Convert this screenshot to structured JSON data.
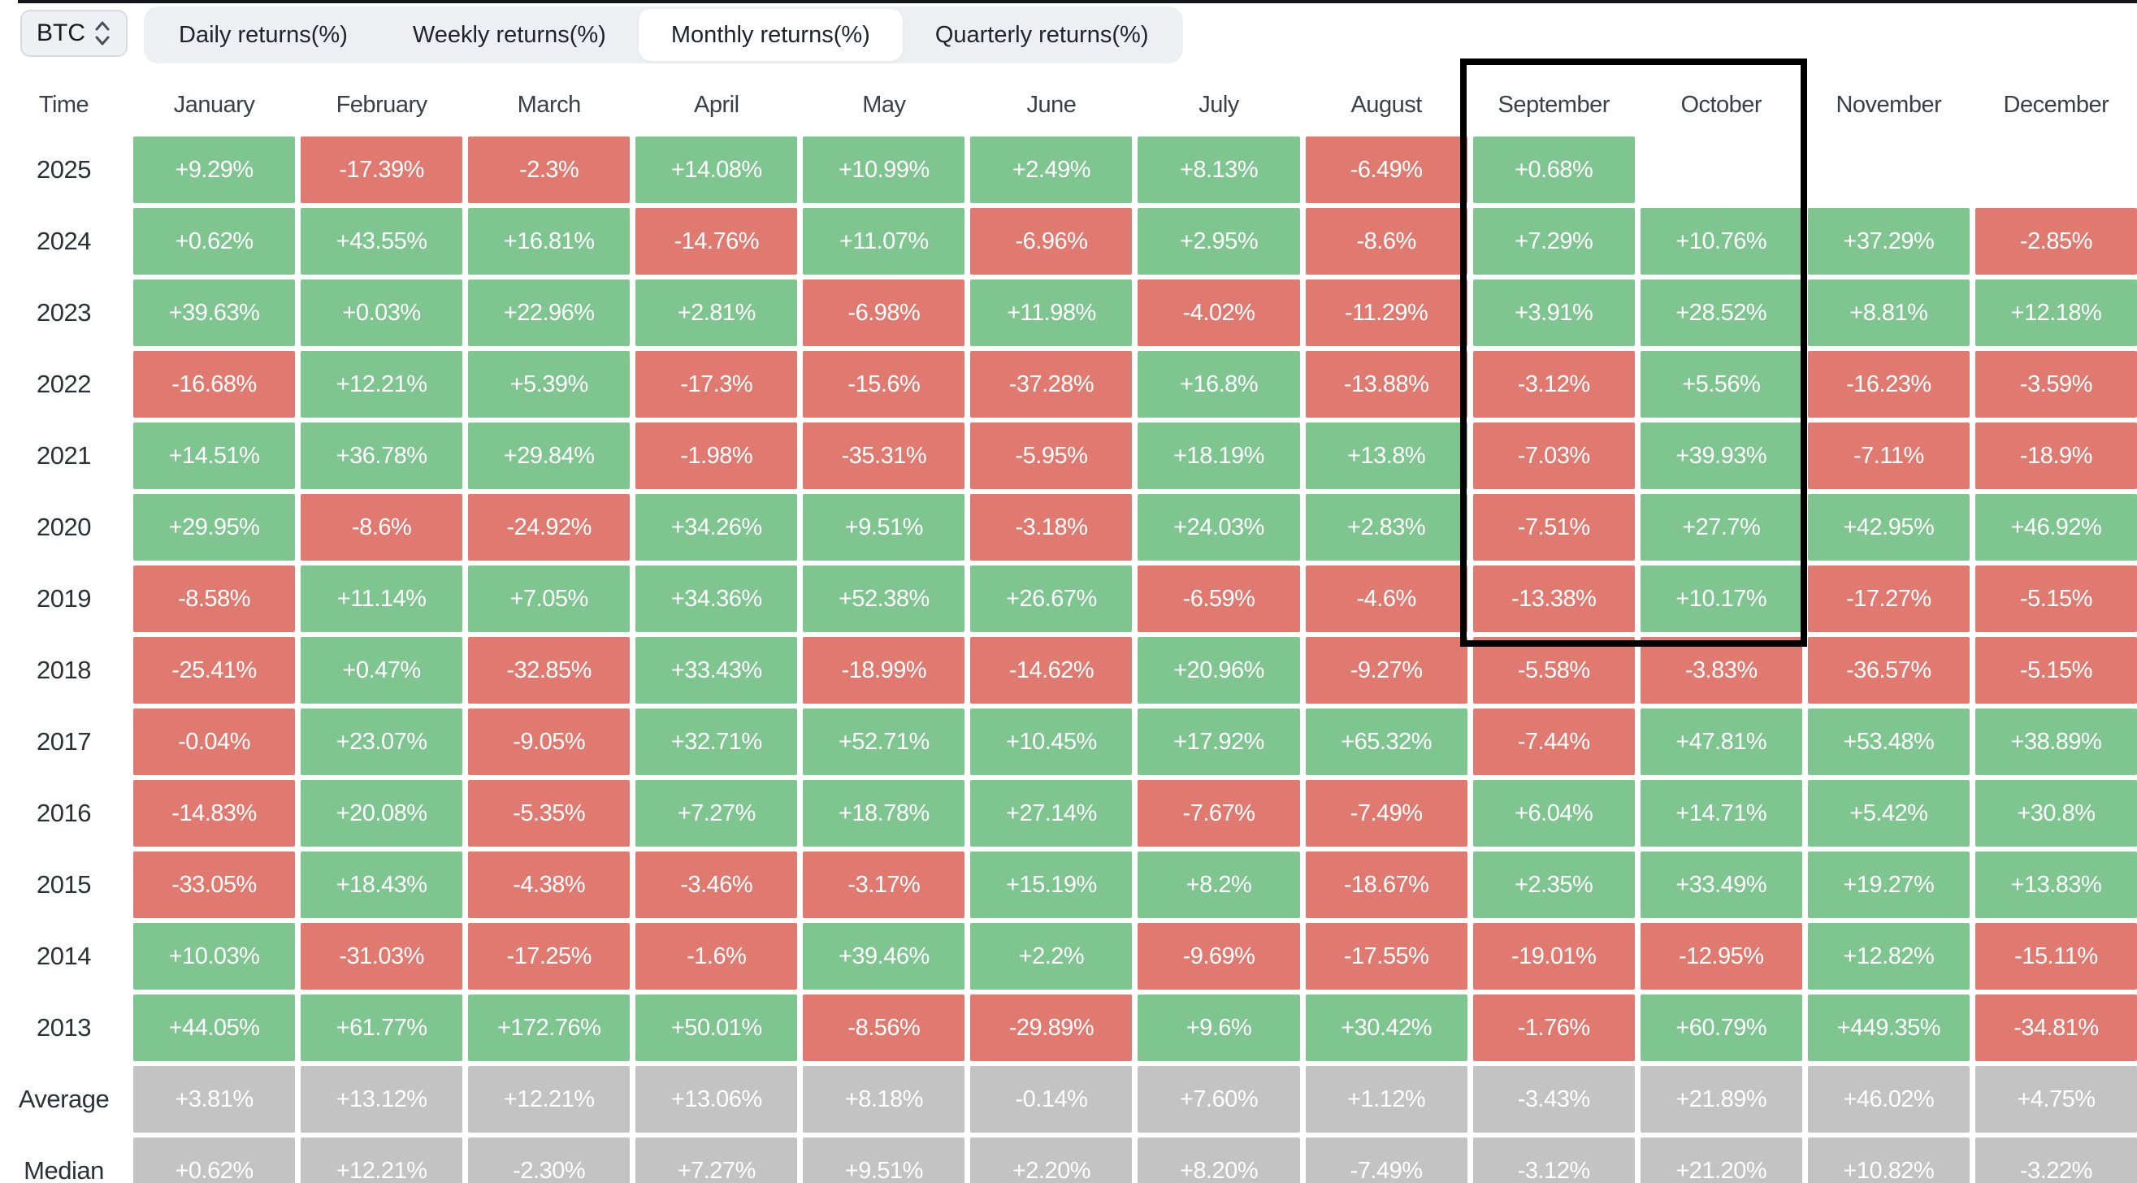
{
  "controls": {
    "asset": "BTC",
    "tabs": [
      {
        "label": "Daily returns(%)",
        "active": false
      },
      {
        "label": "Weekly returns(%)",
        "active": false
      },
      {
        "label": "Monthly returns(%)",
        "active": true
      },
      {
        "label": "Quarterly returns(%)",
        "active": false
      }
    ]
  },
  "table": {
    "time_header": "Time",
    "months": [
      "January",
      "February",
      "March",
      "April",
      "May",
      "June",
      "July",
      "August",
      "September",
      "October",
      "November",
      "December"
    ],
    "rows": [
      {
        "label": "2025",
        "type": "year",
        "values": [
          "+9.29%",
          "-17.39%",
          "-2.3%",
          "+14.08%",
          "+10.99%",
          "+2.49%",
          "+8.13%",
          "-6.49%",
          "+0.68%",
          "",
          "",
          ""
        ]
      },
      {
        "label": "2024",
        "type": "year",
        "values": [
          "+0.62%",
          "+43.55%",
          "+16.81%",
          "-14.76%",
          "+11.07%",
          "-6.96%",
          "+2.95%",
          "-8.6%",
          "+7.29%",
          "+10.76%",
          "+37.29%",
          "-2.85%"
        ]
      },
      {
        "label": "2023",
        "type": "year",
        "values": [
          "+39.63%",
          "+0.03%",
          "+22.96%",
          "+2.81%",
          "-6.98%",
          "+11.98%",
          "-4.02%",
          "-11.29%",
          "+3.91%",
          "+28.52%",
          "+8.81%",
          "+12.18%"
        ]
      },
      {
        "label": "2022",
        "type": "year",
        "values": [
          "-16.68%",
          "+12.21%",
          "+5.39%",
          "-17.3%",
          "-15.6%",
          "-37.28%",
          "+16.8%",
          "-13.88%",
          "-3.12%",
          "+5.56%",
          "-16.23%",
          "-3.59%"
        ]
      },
      {
        "label": "2021",
        "type": "year",
        "values": [
          "+14.51%",
          "+36.78%",
          "+29.84%",
          "-1.98%",
          "-35.31%",
          "-5.95%",
          "+18.19%",
          "+13.8%",
          "-7.03%",
          "+39.93%",
          "-7.11%",
          "-18.9%"
        ]
      },
      {
        "label": "2020",
        "type": "year",
        "values": [
          "+29.95%",
          "-8.6%",
          "-24.92%",
          "+34.26%",
          "+9.51%",
          "-3.18%",
          "+24.03%",
          "+2.83%",
          "-7.51%",
          "+27.7%",
          "+42.95%",
          "+46.92%"
        ]
      },
      {
        "label": "2019",
        "type": "year",
        "values": [
          "-8.58%",
          "+11.14%",
          "+7.05%",
          "+34.36%",
          "+52.38%",
          "+26.67%",
          "-6.59%",
          "-4.6%",
          "-13.38%",
          "+10.17%",
          "-17.27%",
          "-5.15%"
        ]
      },
      {
        "label": "2018",
        "type": "year",
        "values": [
          "-25.41%",
          "+0.47%",
          "-32.85%",
          "+33.43%",
          "-18.99%",
          "-14.62%",
          "+20.96%",
          "-9.27%",
          "-5.58%",
          "-3.83%",
          "-36.57%",
          "-5.15%"
        ]
      },
      {
        "label": "2017",
        "type": "year",
        "values": [
          "-0.04%",
          "+23.07%",
          "-9.05%",
          "+32.71%",
          "+52.71%",
          "+10.45%",
          "+17.92%",
          "+65.32%",
          "-7.44%",
          "+47.81%",
          "+53.48%",
          "+38.89%"
        ]
      },
      {
        "label": "2016",
        "type": "year",
        "values": [
          "-14.83%",
          "+20.08%",
          "-5.35%",
          "+7.27%",
          "+18.78%",
          "+27.14%",
          "-7.67%",
          "-7.49%",
          "+6.04%",
          "+14.71%",
          "+5.42%",
          "+30.8%"
        ]
      },
      {
        "label": "2015",
        "type": "year",
        "values": [
          "-33.05%",
          "+18.43%",
          "-4.38%",
          "-3.46%",
          "-3.17%",
          "+15.19%",
          "+8.2%",
          "-18.67%",
          "+2.35%",
          "+33.49%",
          "+19.27%",
          "+13.83%"
        ]
      },
      {
        "label": "2014",
        "type": "year",
        "values": [
          "+10.03%",
          "-31.03%",
          "-17.25%",
          "-1.6%",
          "+39.46%",
          "+2.2%",
          "-9.69%",
          "-17.55%",
          "-19.01%",
          "-12.95%",
          "+12.82%",
          "-15.11%"
        ]
      },
      {
        "label": "2013",
        "type": "year",
        "values": [
          "+44.05%",
          "+61.77%",
          "+172.76%",
          "+50.01%",
          "-8.56%",
          "-29.89%",
          "+9.6%",
          "+30.42%",
          "-1.76%",
          "+60.79%",
          "+449.35%",
          "-34.81%"
        ]
      },
      {
        "label": "Average",
        "type": "summary",
        "values": [
          "+3.81%",
          "+13.12%",
          "+12.21%",
          "+13.06%",
          "+8.18%",
          "-0.14%",
          "+7.60%",
          "+1.12%",
          "-3.43%",
          "+21.89%",
          "+46.02%",
          "+4.75%"
        ]
      },
      {
        "label": "Median",
        "type": "summary",
        "values": [
          "+0.62%",
          "+12.21%",
          "-2.30%",
          "+7.27%",
          "+9.51%",
          "+2.20%",
          "+8.20%",
          "-7.49%",
          "-3.12%",
          "+21.20%",
          "+10.82%",
          "-3.22%"
        ]
      }
    ]
  },
  "highlight": {
    "start_month": "September",
    "end_month": "October",
    "last_row": "2019"
  },
  "colors": {
    "positive": "#7ec590",
    "negative": "#e0796f",
    "summary": "#c3c3c3",
    "header_text": "#3a4047",
    "label_text": "#2c3137",
    "tab_bg": "#edeff2",
    "tab_active_bg": "#ffffff",
    "tab_text": "#1d242c",
    "asset_bg": "#eef0f3",
    "asset_border": "#d8dbe0",
    "topbar": "#141518",
    "highlight": "#000000"
  }
}
